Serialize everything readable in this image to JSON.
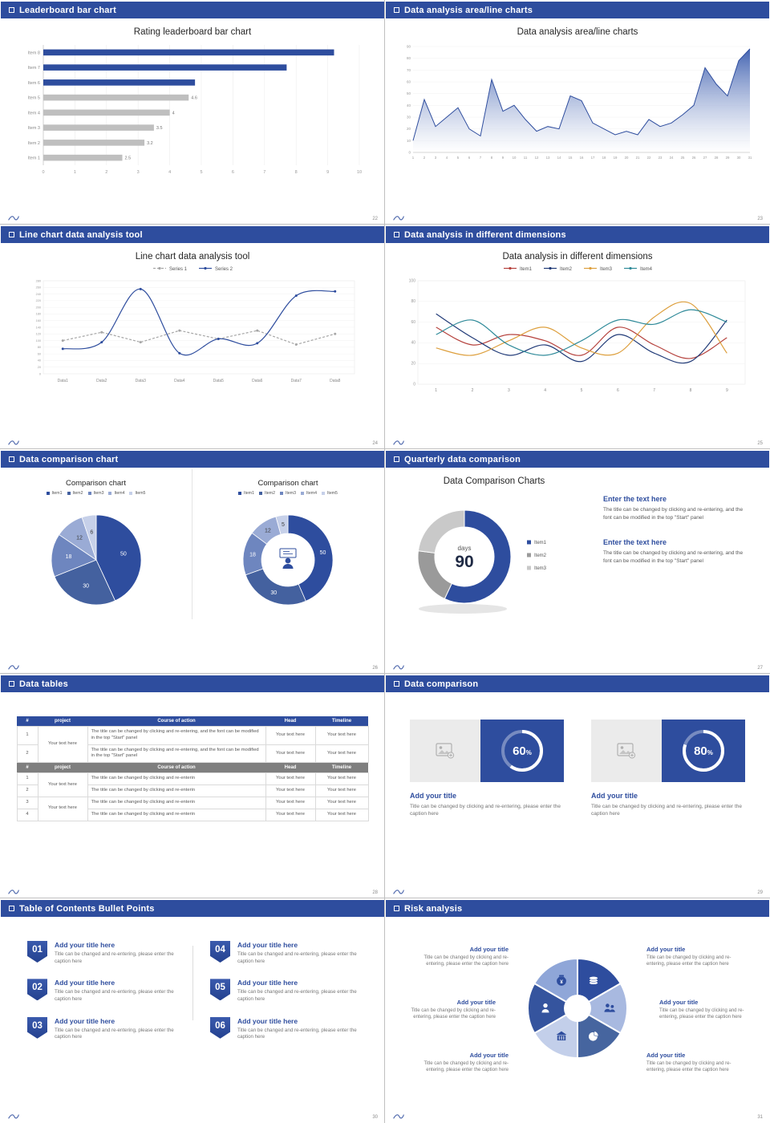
{
  "accent": "#2e4d9e",
  "slides": [
    {
      "header": "Leaderboard bar chart",
      "page": "22",
      "title": "Rating leaderboard bar chart",
      "chart": {
        "type": "bar",
        "categories": [
          "Item 8",
          "Item 7",
          "Item 6",
          "Item 5",
          "Item 4",
          "Item 3",
          "Item 2",
          "Item 1"
        ],
        "values": [
          9.2,
          7.7,
          4.8,
          4.6,
          4,
          3.5,
          3.2,
          2.5
        ],
        "bar_labels": [
          "",
          "",
          "",
          "4.6",
          "4",
          "3.5",
          "3.2",
          "2.5"
        ],
        "bar_colors": [
          "#2e4d9e",
          "#2e4d9e",
          "#2e4d9e",
          "#bfbfbf",
          "#bfbfbf",
          "#bfbfbf",
          "#bfbfbf",
          "#bfbfbf"
        ],
        "xlim": [
          0,
          10
        ],
        "xticks": [
          0,
          1,
          2,
          3,
          4,
          5,
          6,
          7,
          8,
          9,
          10
        ]
      }
    },
    {
      "header": "Data analysis area/line charts",
      "page": "23",
      "title": "Data analysis area/line charts",
      "chart": {
        "type": "area",
        "x": [
          1,
          2,
          3,
          4,
          5,
          6,
          7,
          8,
          9,
          10,
          11,
          12,
          13,
          14,
          15,
          16,
          17,
          18,
          19,
          20,
          21,
          22,
          23,
          24,
          25,
          26,
          27,
          28,
          29,
          30,
          31
        ],
        "values": [
          10,
          45,
          22,
          30,
          38,
          20,
          14,
          62,
          35,
          40,
          28,
          18,
          22,
          20,
          48,
          44,
          25,
          20,
          15,
          18,
          15,
          28,
          22,
          25,
          32,
          40,
          72,
          58,
          48,
          78,
          88
        ],
        "ylim": [
          0,
          90
        ],
        "yticks": [
          0,
          10,
          20,
          30,
          40,
          50,
          60,
          70,
          80,
          90
        ],
        "line_color": "#2e4d9e",
        "fill_from": "#3a5cae"
      }
    },
    {
      "header": "Line chart data analysis tool",
      "page": "24",
      "title": "Line chart data analysis tool",
      "legend": [
        "Series 1",
        "Series 2"
      ],
      "chart": {
        "type": "line",
        "x_labels": [
          "Data1",
          "Data2",
          "Data3",
          "Data4",
          "Data5",
          "Data6",
          "Data7",
          "Data8"
        ],
        "ylim": [
          0,
          280
        ],
        "ytick_step": 20,
        "series": [
          {
            "name": "Series 1",
            "color": "#a6a6a6",
            "dash": "3 2",
            "smooth": false,
            "dots": true,
            "values": [
              100,
              125,
              95,
              130,
              105,
              130,
              88,
              120
            ]
          },
          {
            "name": "Series 2",
            "color": "#2e4d9e",
            "dash": "",
            "smooth": true,
            "dots": true,
            "values": [
              75,
              95,
              255,
              62,
              105,
              92,
              235,
              248
            ]
          }
        ]
      }
    },
    {
      "header": "Data analysis in different dimensions",
      "page": "25",
      "title": "Data analysis in different dimensions",
      "legend": [
        "Item1",
        "Item2",
        "Item3",
        "Item4"
      ],
      "chart": {
        "type": "line",
        "x_labels": [
          "1",
          "2",
          "3",
          "4",
          "5",
          "6",
          "7",
          "8",
          "9"
        ],
        "ylim": [
          0,
          100
        ],
        "ytick_step": 20,
        "series": [
          {
            "name": "Item1",
            "color": "#b5413c",
            "dash": "",
            "smooth": true,
            "dots": false,
            "values": [
              55,
              38,
              48,
              42,
              28,
              55,
              38,
              25,
              45
            ]
          },
          {
            "name": "Item2",
            "color": "#203a77",
            "dash": "",
            "smooth": true,
            "dots": false,
            "values": [
              68,
              45,
              28,
              38,
              22,
              48,
              30,
              22,
              62
            ]
          },
          {
            "name": "Item3",
            "color": "#dd9f3d",
            "dash": "",
            "smooth": true,
            "dots": false,
            "values": [
              35,
              28,
              42,
              55,
              35,
              30,
              65,
              78,
              30
            ]
          },
          {
            "name": "Item4",
            "color": "#2f8a99",
            "dash": "",
            "smooth": true,
            "dots": false,
            "values": [
              48,
              62,
              38,
              28,
              42,
              62,
              58,
              72,
              60
            ]
          }
        ]
      }
    },
    {
      "header": "Data comparison chart",
      "page": "26",
      "charts": [
        {
          "type": "pie",
          "title": "Comparison chart",
          "legend": [
            "Item1",
            "Item2",
            "Item3",
            "Item4",
            "Item5"
          ],
          "values": [
            50,
            30,
            18,
            12,
            6
          ],
          "labels": [
            "50",
            "30",
            "18",
            "12",
            "6"
          ],
          "label_colors": [
            "#fff",
            "#fff",
            "#fff",
            "#3a3a3a",
            "#3a3a3a"
          ],
          "colors": [
            "#2e4d9e",
            "#44619f",
            "#6e86bf",
            "#9aabd5",
            "#c6d0e9"
          ]
        },
        {
          "type": "donut",
          "title": "Comparison chart",
          "legend": [
            "Item1",
            "Item2",
            "Item3",
            "Item4",
            "Item5"
          ],
          "values": [
            50,
            30,
            18,
            12,
            5
          ],
          "labels": [
            "50",
            "30",
            "18",
            "12",
            "5"
          ],
          "label_colors": [
            "#fff",
            "#fff",
            "#fff",
            "#3a3a3a",
            "#3a3a3a"
          ],
          "colors": [
            "#2e4d9e",
            "#44619f",
            "#6e86bf",
            "#9aabd5",
            "#c6d0e9"
          ]
        }
      ]
    },
    {
      "header": "Quarterly data comparison",
      "page": "27",
      "title": "Data Comparison Charts",
      "donut": {
        "values": [
          57,
          20,
          23
        ],
        "colors": [
          "#2e4d9e",
          "#9a9a9a",
          "#c9c9c9"
        ],
        "legend": [
          "Item1",
          "Item2",
          "Item3"
        ],
        "center_label": "days",
        "center_value": "90"
      },
      "blocks": [
        {
          "heading": "Enter the text here",
          "body": "The title can be changed by clicking and re-entering, and the font can be modified in the top \"Start\" panel"
        },
        {
          "heading": "Enter the text here",
          "body": "The title can be changed by clicking and re-entering, and the font can be modified in the top \"Start\" panel"
        }
      ]
    },
    {
      "header": "Data tables",
      "page": "28",
      "table_top": {
        "headers": [
          "#",
          "project",
          "Course of action",
          "Head",
          "Timeline"
        ],
        "project": "Your text here",
        "rows": [
          {
            "num": "1",
            "course": "The title can be changed by clicking and re-entering, and the font can be modified in the top \"Start\" panel",
            "head": "Your text here",
            "timeline": "Your text here"
          },
          {
            "num": "2",
            "course": "The title can be changed by clicking and re-entering, and the font can be modified in the top \"Start\" panel",
            "head": "Your text here",
            "timeline": "Your text here"
          }
        ]
      },
      "table_bottom": {
        "headers": [
          "#",
          "project",
          "Course of action",
          "Head",
          "Timeline"
        ],
        "projects": [
          "Your text here",
          "Your text here"
        ],
        "rows": [
          {
            "num": "1",
            "course": "The title can be changed by clicking and re-enterin",
            "head": "Your text here",
            "timeline": "Your text here"
          },
          {
            "num": "2",
            "course": "The title can be changed by clicking and re-enterin",
            "head": "Your text here",
            "timeline": "Your text here"
          },
          {
            "num": "3",
            "course": "The title can be changed by clicking and re-enterin",
            "head": "Your text here",
            "timeline": "Your text here"
          },
          {
            "num": "4",
            "course": "The title can be changed by clicking and re-enterin",
            "head": "Your text here",
            "timeline": "Your text here"
          }
        ]
      }
    },
    {
      "header": "Data comparison",
      "page": "29",
      "cards": [
        {
          "percent": "60",
          "title": "Add your title",
          "caption": "Title can be changed by clicking and re-entering, please enter the caption here"
        },
        {
          "percent": "80",
          "title": "Add your title",
          "caption": "Title can be changed by clicking and re-entering, please enter the caption here"
        }
      ]
    },
    {
      "header": "Table of Contents Bullet Points",
      "page": "30",
      "items": [
        {
          "num": "01",
          "title": "Add your title here",
          "caption": "Title can be changed and re-entering, please enter the caption here"
        },
        {
          "num": "02",
          "title": "Add your title here",
          "caption": "Title can be changed and re-entering, please enter the caption here"
        },
        {
          "num": "03",
          "title": "Add your title here",
          "caption": "Title can be changed and re-entering, please enter the caption here"
        },
        {
          "num": "04",
          "title": "Add your title here",
          "caption": "Title can be changed and re-entering, please enter the caption here"
        },
        {
          "num": "05",
          "title": "Add your title here",
          "caption": "Title can be changed and re-entering, please enter the caption here"
        },
        {
          "num": "06",
          "title": "Add your title here",
          "caption": "Title can be changed and re-entering, please enter the caption here"
        }
      ]
    },
    {
      "header": "Risk analysis",
      "page": "31",
      "blocks": [
        {
          "title": "Add your title",
          "caption": "Title can be changed by clicking and re-entering, please enter the caption here"
        },
        {
          "title": "Add your title",
          "caption": "Title can be changed by clicking and re-entering, please enter the caption here"
        },
        {
          "title": "Add your title",
          "caption": "Title can be changed by clicking and re-entering, please enter the caption here"
        },
        {
          "title": "Add your title",
          "caption": "Title can be changed by clicking and re-entering, please enter the caption here"
        },
        {
          "title": "Add your title",
          "caption": "Title can be changed by clicking and re-entering, please enter the caption here"
        },
        {
          "title": "Add your title",
          "caption": "Title can be changed by clicking and re-entering, please enter the caption here"
        }
      ],
      "diagram": {
        "icons": [
          "coins",
          "people",
          "pie-chart",
          "building",
          "person",
          "money-bag"
        ],
        "colors": [
          "#2e4d9e",
          "#a8b9e0",
          "#46659f",
          "#c3cfea",
          "#35549e",
          "#8fa6d8"
        ]
      }
    }
  ]
}
